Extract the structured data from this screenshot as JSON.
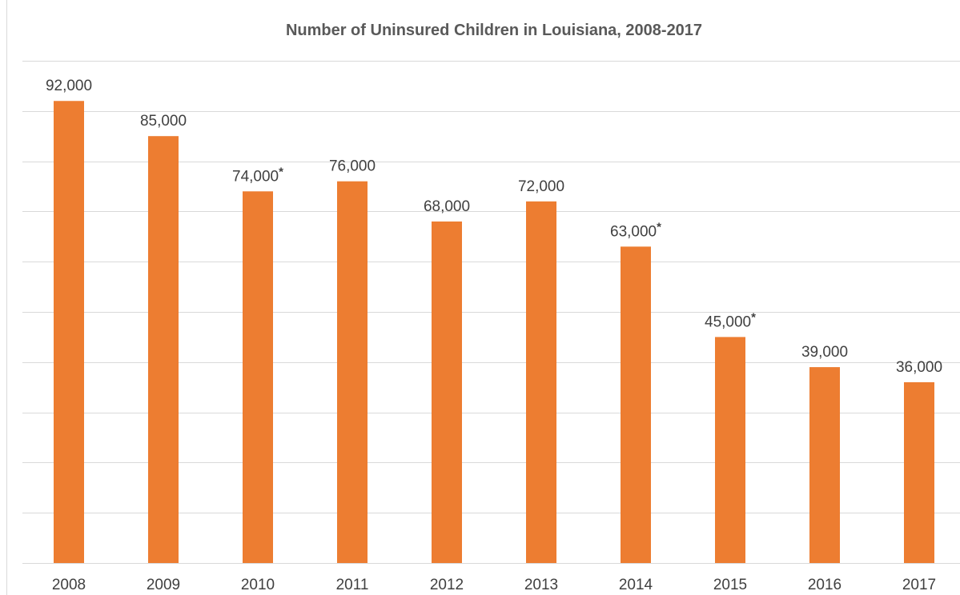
{
  "chart_data": {
    "type": "bar",
    "title": "Number of Uninsured Children in Louisiana, 2008-2017",
    "xlabel": "",
    "ylabel": "",
    "categories": [
      "2008",
      "2009",
      "2010",
      "2011",
      "2012",
      "2013",
      "2014",
      "2015",
      "2016",
      "2017"
    ],
    "values": [
      92000,
      85000,
      74000,
      76000,
      68000,
      72000,
      63000,
      45000,
      39000,
      36000
    ],
    "data_labels": [
      "92,000",
      "85,000",
      "74,000",
      "76,000",
      "68,000",
      "72,000",
      "63,000",
      "45,000",
      "39,000",
      "36,000"
    ],
    "data_label_marks": [
      "",
      "",
      "*",
      "",
      "",
      "",
      "*",
      "*",
      "",
      ""
    ],
    "ylim": [
      0,
      100000
    ],
    "grid": true,
    "legend": "none",
    "bar_color": "#ED7D31",
    "gridline_color": "#D9D9D9"
  }
}
